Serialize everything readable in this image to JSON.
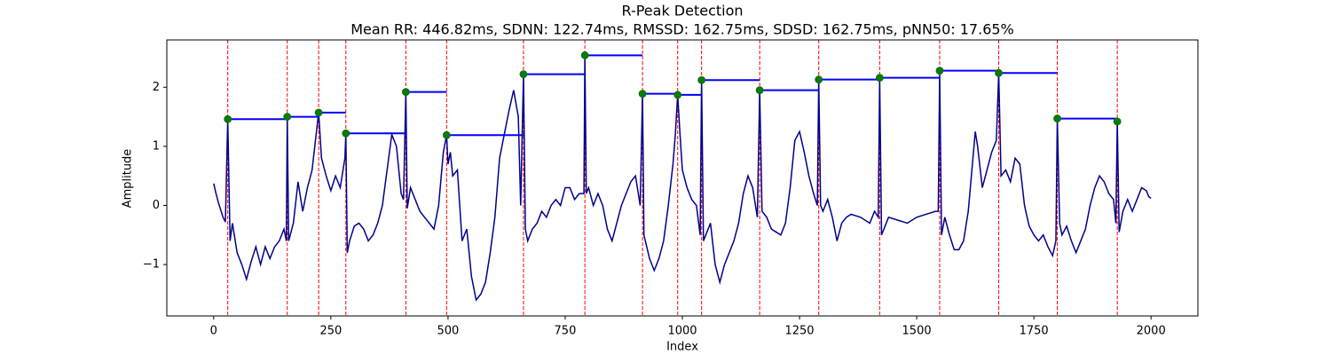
{
  "chart_data": {
    "type": "line",
    "title": "R-Peak Detection",
    "subtitle": "Mean RR: 446.82ms, SDNN: 122.74ms, RMSSD: 162.75ms, SDSD: 162.75ms, pNN50: 17.65%",
    "xlabel": "Index",
    "ylabel": "Amplitude",
    "xlim": [
      -100,
      2100
    ],
    "ylim": [
      -1.87,
      2.8
    ],
    "xticks": [
      0,
      250,
      500,
      750,
      1000,
      1250,
      1500,
      1750,
      2000
    ],
    "yticks": [
      {
        "value": -1,
        "label": "−1"
      },
      0,
      1,
      2
    ],
    "color": "#00008b",
    "x": [
      0,
      5,
      10,
      20,
      25,
      30,
      35,
      40,
      50,
      60,
      70,
      80,
      90,
      100,
      110,
      120,
      130,
      140,
      150,
      155,
      157,
      160,
      170,
      180,
      190,
      200,
      210,
      220,
      224,
      230,
      240,
      250,
      260,
      270,
      280,
      282,
      285,
      290,
      300,
      310,
      320,
      330,
      340,
      350,
      360,
      370,
      380,
      390,
      400,
      405,
      410,
      413,
      420,
      430,
      440,
      450,
      460,
      470,
      480,
      490,
      497,
      500,
      505,
      510,
      520,
      530,
      540,
      550,
      560,
      570,
      580,
      590,
      600,
      610,
      620,
      630,
      640,
      650,
      655,
      661,
      665,
      670,
      680,
      690,
      700,
      710,
      720,
      730,
      740,
      750,
      760,
      770,
      780,
      790,
      792,
      795,
      800,
      810,
      820,
      830,
      840,
      850,
      860,
      870,
      880,
      890,
      900,
      910,
      915,
      918,
      930,
      940,
      950,
      960,
      970,
      980,
      985,
      990,
      995,
      1000,
      1010,
      1020,
      1030,
      1038,
      1041,
      1045,
      1060,
      1070,
      1080,
      1090,
      1100,
      1110,
      1120,
      1130,
      1140,
      1150,
      1160,
      1165,
      1170,
      1180,
      1190,
      1200,
      1210,
      1220,
      1230,
      1240,
      1250,
      1260,
      1270,
      1280,
      1288,
      1291,
      1295,
      1300,
      1310,
      1320,
      1330,
      1340,
      1350,
      1360,
      1380,
      1400,
      1410,
      1418,
      1421,
      1425,
      1430,
      1440,
      1460,
      1480,
      1500,
      1520,
      1540,
      1546,
      1549,
      1553,
      1560,
      1570,
      1580,
      1590,
      1600,
      1610,
      1620,
      1625,
      1630,
      1640,
      1650,
      1660,
      1670,
      1675,
      1680,
      1690,
      1700,
      1710,
      1720,
      1730,
      1740,
      1750,
      1760,
      1770,
      1780,
      1790,
      1797,
      1800,
      1805,
      1810,
      1820,
      1830,
      1840,
      1850,
      1860,
      1870,
      1880,
      1890,
      1900,
      1910,
      1920,
      1925,
      1928,
      1932,
      1940,
      1950,
      1960,
      1970,
      1980,
      1990,
      1995,
      2000
    ],
    "values": [
      0.37,
      0.2,
      0.05,
      -0.2,
      -0.28,
      1.46,
      -0.6,
      -0.3,
      -0.8,
      -1.0,
      -1.25,
      -0.95,
      -0.7,
      -1.0,
      -0.7,
      -0.9,
      -0.7,
      -0.6,
      -0.4,
      -0.6,
      1.5,
      -0.6,
      -0.3,
      0.4,
      -0.1,
      0.3,
      0.6,
      1.3,
      1.57,
      0.8,
      0.5,
      0.25,
      0.5,
      0.3,
      0.8,
      1.22,
      -0.8,
      -0.6,
      -0.35,
      -0.3,
      -0.4,
      -0.6,
      -0.5,
      -0.3,
      0.0,
      0.6,
      1.2,
      1.0,
      0.2,
      0.1,
      1.92,
      -0.05,
      0.3,
      0.1,
      -0.1,
      -0.2,
      -0.3,
      -0.4,
      0.0,
      0.9,
      1.19,
      0.7,
      0.9,
      0.5,
      0.6,
      -0.6,
      -0.4,
      -1.2,
      -1.6,
      -1.5,
      -1.3,
      -0.8,
      -0.2,
      0.8,
      1.2,
      1.6,
      1.95,
      1.5,
      0.0,
      2.22,
      -0.4,
      -0.6,
      -0.4,
      -0.3,
      -0.1,
      -0.2,
      0.0,
      0.1,
      0.0,
      0.3,
      0.3,
      0.1,
      0.2,
      0.2,
      2.54,
      0.2,
      0.3,
      0.0,
      0.2,
      0.0,
      -0.4,
      -0.6,
      -0.3,
      0.0,
      0.2,
      0.4,
      0.5,
      0.0,
      1.89,
      -0.5,
      -0.9,
      -1.1,
      -0.9,
      -0.6,
      0.0,
      0.7,
      1.2,
      1.87,
      1.2,
      0.6,
      0.3,
      0.1,
      0.0,
      -0.5,
      2.12,
      -0.6,
      -0.3,
      -1.0,
      -1.3,
      -1.0,
      -0.8,
      -0.6,
      -0.3,
      0.2,
      0.5,
      0.3,
      -0.2,
      1.95,
      -0.1,
      -0.2,
      -0.4,
      -0.45,
      -0.5,
      -0.3,
      0.3,
      1.1,
      1.25,
      0.9,
      0.5,
      0.2,
      0.0,
      2.13,
      0.0,
      -0.1,
      0.1,
      -0.2,
      -0.6,
      -0.3,
      -0.2,
      -0.15,
      -0.2,
      -0.3,
      -0.1,
      -0.2,
      2.16,
      -0.5,
      -0.4,
      -0.2,
      -0.25,
      -0.3,
      -0.2,
      -0.15,
      -0.1,
      -0.1,
      2.28,
      -0.5,
      -0.2,
      -0.5,
      -0.75,
      -0.75,
      -0.6,
      -0.1,
      0.8,
      1.25,
      1.0,
      0.3,
      0.6,
      0.9,
      1.1,
      2.24,
      0.5,
      0.6,
      0.4,
      0.8,
      0.7,
      0.0,
      -0.35,
      -0.5,
      -0.6,
      -0.5,
      -0.7,
      -0.85,
      -0.6,
      1.47,
      -0.3,
      -0.5,
      -0.35,
      -0.6,
      -0.8,
      -0.6,
      -0.4,
      0.0,
      0.3,
      0.5,
      0.4,
      0.2,
      0.1,
      -0.3,
      1.42,
      -0.45,
      -0.1,
      0.1,
      -0.1,
      0.1,
      0.3,
      0.25,
      0.15,
      0.12
    ],
    "peaks": {
      "color": "green",
      "line_color": "red",
      "interval_color": "blue",
      "x": [
        30,
        157,
        224,
        282,
        410,
        497,
        661,
        792,
        915,
        990,
        1041,
        1165,
        1291,
        1421,
        1549,
        1675,
        1800,
        1928
      ],
      "values": [
        1.46,
        1.5,
        1.57,
        1.22,
        1.92,
        1.19,
        2.22,
        2.54,
        1.89,
        1.87,
        2.12,
        1.95,
        2.13,
        2.16,
        2.28,
        2.24,
        1.47,
        1.42
      ]
    }
  }
}
